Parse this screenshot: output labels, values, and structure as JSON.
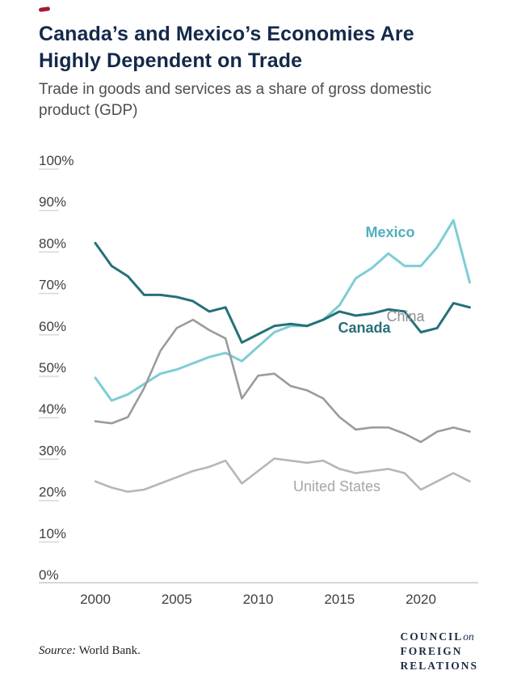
{
  "page": {
    "title": "Canada’s and Mexico’s Economies Are Highly Dependent on Trade",
    "subtitle": "Trade in goods and services as a share of gross domestic product (GDP)",
    "source_prefix": "Source:",
    "source_text": "World Bank.",
    "logo": {
      "line1": "COUNCIL",
      "line1_italic": "on",
      "line2": "FOREIGN",
      "line3": "RELATIONS"
    }
  },
  "colors": {
    "title": "#14294A",
    "brand_red": "#A6192E",
    "axis_text": "#3F3F3F",
    "axis_line": "#C9C9C9"
  },
  "chart_data": {
    "type": "line",
    "title": "Canada’s and Mexico’s Economies Are Highly Dependent on Trade",
    "subtitle": "Trade in goods and services as a share of gross domestic product (GDP)",
    "xlabel": "",
    "ylabel": "",
    "grid": false,
    "legend_position": "inline-labels",
    "xlim": [
      2000,
      2023
    ],
    "ylim": [
      0,
      100
    ],
    "x": [
      2000,
      2001,
      2002,
      2003,
      2004,
      2005,
      2006,
      2007,
      2008,
      2009,
      2010,
      2011,
      2012,
      2013,
      2014,
      2015,
      2016,
      2017,
      2018,
      2019,
      2020,
      2021,
      2022,
      2023
    ],
    "series": [
      {
        "name": "Mexico",
        "color": "#7ECDD5",
        "label_color": "#4FB0BE",
        "values": [
          47.5,
          42,
          43.5,
          46,
          48.5,
          49.5,
          51,
          52.5,
          53.5,
          51.5,
          55,
          58.5,
          60,
          60,
          61.5,
          65,
          71.5,
          74,
          77.5,
          74.5,
          74.5,
          79,
          85.5,
          70.5
        ]
      },
      {
        "name": "Canada",
        "color": "#26707A",
        "label_color": "#26707A",
        "values": [
          80,
          74.5,
          72,
          67.5,
          67.5,
          67,
          66,
          63.5,
          64.5,
          56,
          58,
          60,
          60.5,
          60,
          61.5,
          63.5,
          62.5,
          63,
          64,
          63.5,
          58.5,
          59.5,
          65.5,
          64.5
        ]
      },
      {
        "name": "China",
        "color": "#9B9B9B",
        "label_color": "#8F8F8F",
        "values": [
          37,
          36.5,
          38,
          45,
          54,
          59.5,
          61.5,
          59,
          57,
          42.5,
          48,
          48.5,
          45.5,
          44.5,
          42.5,
          38,
          35,
          35.5,
          35.5,
          34,
          32,
          34.5,
          35.5,
          34.5
        ]
      },
      {
        "name": "United States",
        "color": "#B6B6B6",
        "label_color": "#A6A6A6",
        "values": [
          22.5,
          21,
          20,
          20.5,
          22,
          23.5,
          25,
          26,
          27.5,
          22,
          25,
          28,
          27.5,
          27,
          27.5,
          25.5,
          24.5,
          25,
          25.5,
          24.5,
          20.5,
          22.5,
          24.5,
          22.5
        ]
      }
    ],
    "yticks": [
      100,
      90,
      80,
      70,
      60,
      50,
      40,
      30,
      20,
      10,
      0
    ],
    "ytick_labels": [
      "100%",
      "90%",
      "80%",
      "70%",
      "60%",
      "50%",
      "40%",
      "30%",
      "20%",
      "10%",
      "0%"
    ],
    "xticks": [
      2000,
      2005,
      2010,
      2015,
      2020
    ],
    "labels": [
      {
        "series": 0,
        "x": 483,
        "y": 113,
        "bold": true
      },
      {
        "series": 1,
        "x": 451,
        "y": 231,
        "bold": true
      },
      {
        "series": 2,
        "x": 502,
        "y": 217,
        "bold": false
      },
      {
        "series": 3,
        "x": 417,
        "y": 427,
        "bold": false
      }
    ]
  }
}
